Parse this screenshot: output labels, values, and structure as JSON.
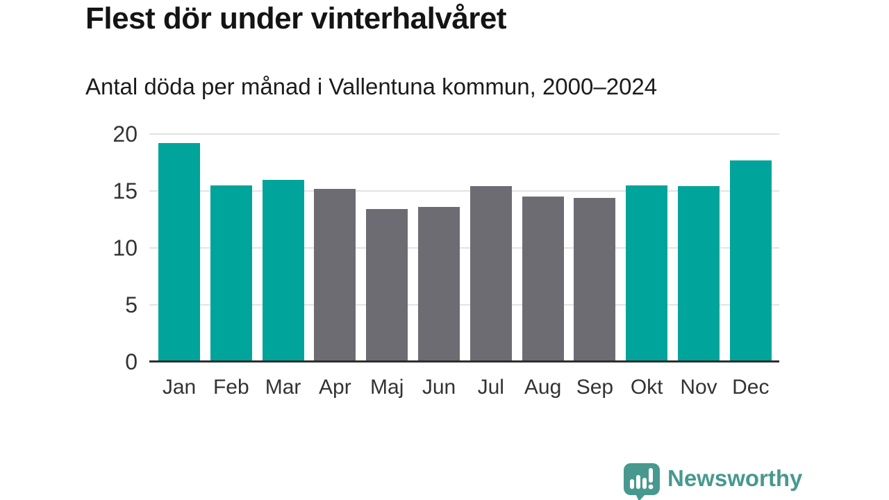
{
  "header": {
    "title": "Flest dör under vinterhalvåret",
    "subtitle": "Antal döda per månad i Vallentuna kommun, 2000–2024"
  },
  "chart_data": {
    "type": "bar",
    "categories": [
      "Jan",
      "Feb",
      "Mar",
      "Apr",
      "Maj",
      "Jun",
      "Jul",
      "Aug",
      "Sep",
      "Okt",
      "Nov",
      "Dec"
    ],
    "values": [
      19.2,
      15.5,
      16.0,
      15.2,
      13.4,
      13.6,
      15.4,
      14.5,
      14.4,
      15.5,
      15.4,
      17.7
    ],
    "bar_palette": [
      "highlight",
      "highlight",
      "highlight",
      "muted",
      "muted",
      "muted",
      "muted",
      "muted",
      "muted",
      "highlight",
      "highlight",
      "highlight"
    ],
    "title": "Flest dör under vinterhalvåret",
    "subtitle": "Antal döda per månad i Vallentuna kommun, 2000–2024",
    "xlabel": "",
    "ylabel": "",
    "ylim": [
      0,
      20
    ],
    "yticks": [
      0,
      5,
      10,
      15,
      20
    ],
    "grid": true,
    "legend": "none"
  },
  "colors": {
    "highlight": "#00a49b",
    "muted": "#6e6c73",
    "gridline": "#e3e3e3",
    "axis_line": "#2e2e2e",
    "text": "#333333",
    "brand": "#47998f"
  },
  "footer": {
    "brand_name": "Newsworthy",
    "logo_icon": "newsworthy-speech-bubble-bar-chart-icon"
  }
}
